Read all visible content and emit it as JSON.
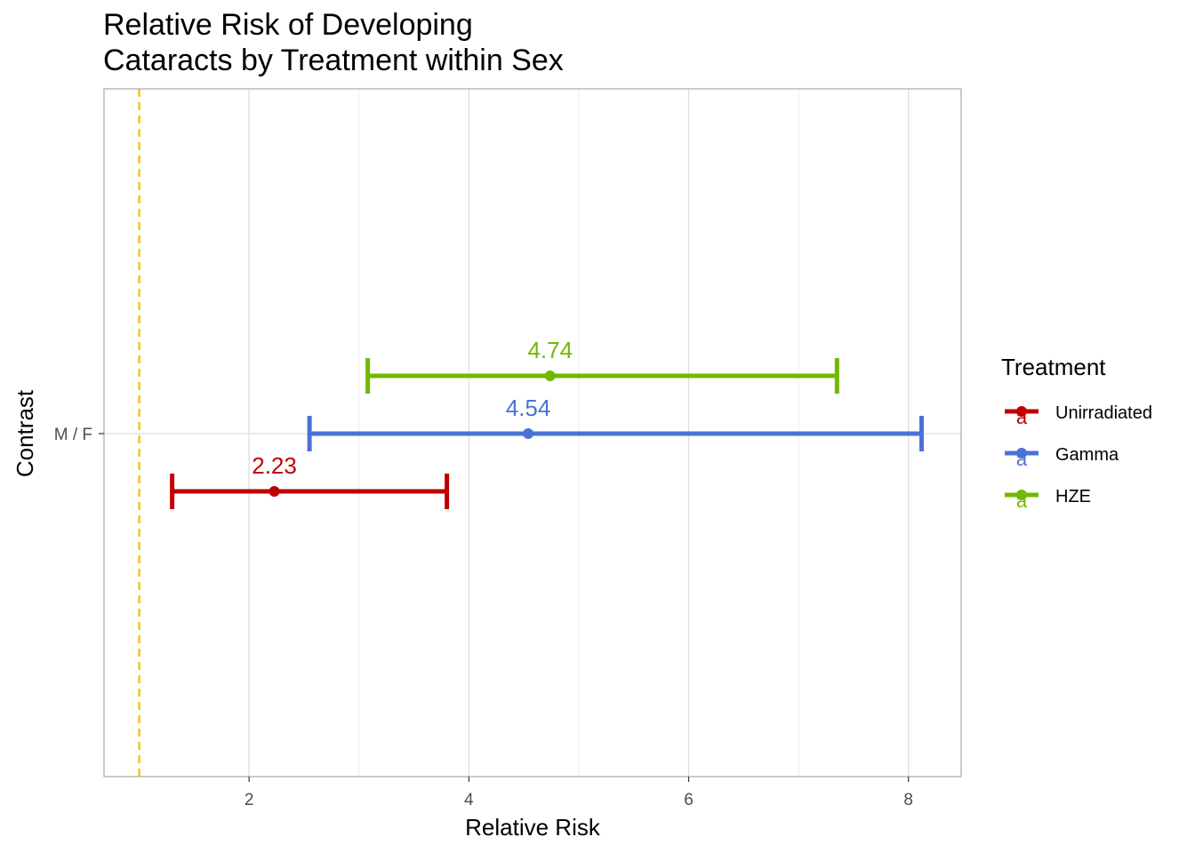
{
  "chart_data": {
    "type": "errorbar",
    "title_lines": [
      "Relative Risk of Developing",
      "Cataracts by Treatment within Sex"
    ],
    "xlabel": "Relative Risk",
    "ylabel": "Contrast",
    "xlim": [
      0.68,
      8.48
    ],
    "x_ticks": [
      2,
      4,
      6,
      8
    ],
    "y_categories": [
      "M / F"
    ],
    "reference_line": {
      "x": 1,
      "color": "#F5C51A",
      "style": "dashed"
    },
    "grid": true,
    "legend": {
      "title": "Treatment",
      "position": "right",
      "key_glyph": "a"
    },
    "series": [
      {
        "name": "Unirradiated",
        "color": "#C00000",
        "estimate": 2.23,
        "lower": 1.3,
        "upper": 3.8,
        "label": "2.23",
        "offset": -1
      },
      {
        "name": "Gamma",
        "color": "#4A72D5",
        "estimate": 4.54,
        "lower": 2.55,
        "upper": 8.12,
        "label": "4.54",
        "offset": 0
      },
      {
        "name": "HZE",
        "color": "#71B800",
        "estimate": 4.74,
        "lower": 3.08,
        "upper": 7.35,
        "label": "4.74",
        "offset": 1
      }
    ]
  }
}
